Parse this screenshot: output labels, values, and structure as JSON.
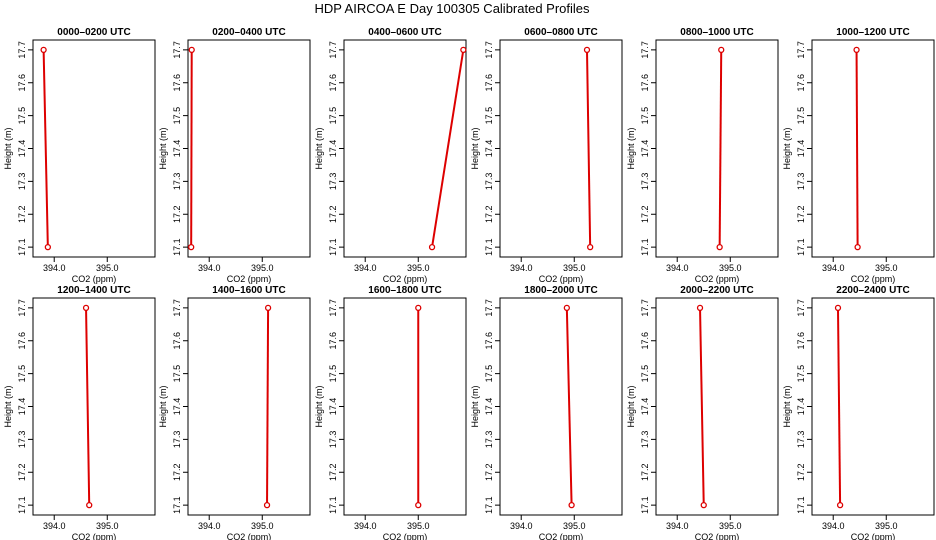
{
  "figure": {
    "title": "HDP AIRCOA E  Day 100305  Calibrated Profiles",
    "colors": {
      "profile": "#dd0000",
      "axis": "#000000"
    }
  },
  "chart_data": [
    {
      "type": "line",
      "title": "0000–0200 UTC",
      "xlabel": "CO2 (ppm)",
      "ylabel": "Height (m)",
      "xlim": [
        393.6,
        395.9
      ],
      "ylim": [
        17.07,
        17.73
      ],
      "xticks": [
        "394.0",
        "395.0"
      ],
      "yticks": [
        "17.1",
        "17.2",
        "17.3",
        "17.4",
        "17.5",
        "17.6",
        "17.7"
      ],
      "series": [
        {
          "x": [
            393.8,
            393.88
          ],
          "y": [
            17.7,
            17.1
          ]
        }
      ]
    },
    {
      "type": "line",
      "title": "0200–0400 UTC",
      "xlabel": "CO2 (ppm)",
      "ylabel": "Height (m)",
      "xlim": [
        393.6,
        395.9
      ],
      "ylim": [
        17.07,
        17.73
      ],
      "xticks": [
        "394.0",
        "395.0"
      ],
      "yticks": [
        "17.1",
        "17.2",
        "17.3",
        "17.4",
        "17.5",
        "17.6",
        "17.7"
      ],
      "series": [
        {
          "x": [
            393.67,
            393.66
          ],
          "y": [
            17.7,
            17.1
          ]
        }
      ]
    },
    {
      "type": "line",
      "title": "0400–0600 UTC",
      "xlabel": "CO2 (ppm)",
      "ylabel": "Height (m)",
      "xlim": [
        393.6,
        395.9
      ],
      "ylim": [
        17.07,
        17.73
      ],
      "xticks": [
        "394.0",
        "395.0"
      ],
      "yticks": [
        "17.1",
        "17.2",
        "17.3",
        "17.4",
        "17.5",
        "17.6",
        "17.7"
      ],
      "series": [
        {
          "x": [
            395.85,
            395.26
          ],
          "y": [
            17.7,
            17.1
          ]
        }
      ]
    },
    {
      "type": "line",
      "title": "0600–0800 UTC",
      "xlabel": "CO2 (ppm)",
      "ylabel": "Height (m)",
      "xlim": [
        393.6,
        395.9
      ],
      "ylim": [
        17.07,
        17.73
      ],
      "xticks": [
        "394.0",
        "395.0"
      ],
      "yticks": [
        "17.1",
        "17.2",
        "17.3",
        "17.4",
        "17.5",
        "17.6",
        "17.7"
      ],
      "series": [
        {
          "x": [
            395.24,
            395.3
          ],
          "y": [
            17.7,
            17.1
          ]
        }
      ]
    },
    {
      "type": "line",
      "title": "0800–1000 UTC",
      "xlabel": "CO2 (ppm)",
      "ylabel": "Height (m)",
      "xlim": [
        393.6,
        395.9
      ],
      "ylim": [
        17.07,
        17.73
      ],
      "xticks": [
        "394.0",
        "395.0"
      ],
      "yticks": [
        "17.1",
        "17.2",
        "17.3",
        "17.4",
        "17.5",
        "17.6",
        "17.7"
      ],
      "series": [
        {
          "x": [
            394.83,
            394.8
          ],
          "y": [
            17.7,
            17.1
          ]
        }
      ]
    },
    {
      "type": "line",
      "title": "1000–1200 UTC",
      "xlabel": "CO2 (ppm)",
      "ylabel": "Height (m)",
      "xlim": [
        393.6,
        395.9
      ],
      "ylim": [
        17.07,
        17.73
      ],
      "xticks": [
        "394.0",
        "395.0"
      ],
      "yticks": [
        "17.1",
        "17.2",
        "17.3",
        "17.4",
        "17.5",
        "17.6",
        "17.7"
      ],
      "series": [
        {
          "x": [
            394.44,
            394.46
          ],
          "y": [
            17.7,
            17.1
          ]
        }
      ]
    },
    {
      "type": "line",
      "title": "1200–1400 UTC",
      "xlabel": "CO2 (ppm)",
      "ylabel": "Height (m)",
      "xlim": [
        393.6,
        395.9
      ],
      "ylim": [
        17.07,
        17.73
      ],
      "xticks": [
        "394.0",
        "395.0"
      ],
      "yticks": [
        "17.1",
        "17.2",
        "17.3",
        "17.4",
        "17.5",
        "17.6",
        "17.7"
      ],
      "series": [
        {
          "x": [
            394.6,
            394.66
          ],
          "y": [
            17.7,
            17.1
          ]
        }
      ]
    },
    {
      "type": "line",
      "title": "1400–1600 UTC",
      "xlabel": "CO2 (ppm)",
      "ylabel": "Height (m)",
      "xlim": [
        393.6,
        395.9
      ],
      "ylim": [
        17.07,
        17.73
      ],
      "xticks": [
        "394.0",
        "395.0"
      ],
      "yticks": [
        "17.1",
        "17.2",
        "17.3",
        "17.4",
        "17.5",
        "17.6",
        "17.7"
      ],
      "series": [
        {
          "x": [
            395.11,
            395.09
          ],
          "y": [
            17.7,
            17.1
          ]
        }
      ]
    },
    {
      "type": "line",
      "title": "1600–1800 UTC",
      "xlabel": "CO2 (ppm)",
      "ylabel": "Height (m)",
      "xlim": [
        393.6,
        395.9
      ],
      "ylim": [
        17.07,
        17.73
      ],
      "xticks": [
        "394.0",
        "395.0"
      ],
      "yticks": [
        "17.1",
        "17.2",
        "17.3",
        "17.4",
        "17.5",
        "17.6",
        "17.7"
      ],
      "series": [
        {
          "x": [
            395.0,
            395.0
          ],
          "y": [
            17.7,
            17.1
          ]
        }
      ]
    },
    {
      "type": "line",
      "title": "1800–2000 UTC",
      "xlabel": "CO2 (ppm)",
      "ylabel": "Height (m)",
      "xlim": [
        393.6,
        395.9
      ],
      "ylim": [
        17.07,
        17.73
      ],
      "xticks": [
        "394.0",
        "395.0"
      ],
      "yticks": [
        "17.1",
        "17.2",
        "17.3",
        "17.4",
        "17.5",
        "17.6",
        "17.7"
      ],
      "series": [
        {
          "x": [
            394.86,
            394.95
          ],
          "y": [
            17.7,
            17.1
          ]
        }
      ]
    },
    {
      "type": "line",
      "title": "2000–2200 UTC",
      "xlabel": "CO2 (ppm)",
      "ylabel": "Height (m)",
      "xlim": [
        393.6,
        395.9
      ],
      "ylim": [
        17.07,
        17.73
      ],
      "xticks": [
        "394.0",
        "395.0"
      ],
      "yticks": [
        "17.1",
        "17.2",
        "17.3",
        "17.4",
        "17.5",
        "17.6",
        "17.7"
      ],
      "series": [
        {
          "x": [
            394.43,
            394.5
          ],
          "y": [
            17.7,
            17.1
          ]
        }
      ]
    },
    {
      "type": "line",
      "title": "2200–2400 UTC",
      "xlabel": "CO2 (ppm)",
      "ylabel": "Height (m)",
      "xlim": [
        393.6,
        395.9
      ],
      "ylim": [
        17.07,
        17.73
      ],
      "xticks": [
        "394.0",
        "395.0"
      ],
      "yticks": [
        "17.1",
        "17.2",
        "17.3",
        "17.4",
        "17.5",
        "17.6",
        "17.7"
      ],
      "series": [
        {
          "x": [
            394.09,
            394.13
          ],
          "y": [
            17.7,
            17.1
          ]
        }
      ]
    }
  ]
}
